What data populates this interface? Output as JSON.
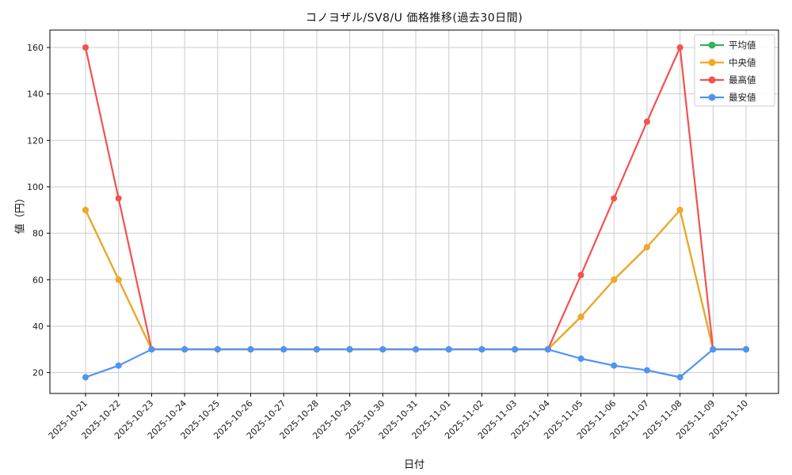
{
  "figure": {
    "background": "#ffffff",
    "plot_background": "#ffffff",
    "spine_color": "#000000",
    "tick_label_color": "#1a1a1a"
  },
  "chart_data": {
    "type": "line",
    "title": "コノヨザル/SV8/U 価格推移(過去30日間)",
    "xlabel": "日付",
    "ylabel": "値（円）",
    "grid": true,
    "grid_color": "#cccccc",
    "legend_position": "upper right",
    "legend_border_color": "#cccccc",
    "categories": [
      "2025-10-21",
      "2025-10-22",
      "2025-10-23",
      "2025-10-24",
      "2025-10-25",
      "2025-10-26",
      "2025-10-27",
      "2025-10-28",
      "2025-10-29",
      "2025-10-30",
      "2025-10-31",
      "2025-11-01",
      "2025-11-02",
      "2025-11-03",
      "2025-11-04",
      "2025-11-05",
      "2025-11-06",
      "2025-11-07",
      "2025-11-08",
      "2025-11-09",
      "2025-11-10"
    ],
    "series": [
      {
        "name": "平均値",
        "color": "#33b35c",
        "values": [
          90,
          60,
          30,
          30,
          30,
          30,
          30,
          30,
          30,
          30,
          30,
          30,
          30,
          30,
          30,
          44,
          60,
          74,
          90,
          30,
          30
        ],
        "occluded_by": "中央値"
      },
      {
        "name": "中央値",
        "color": "#f5a623",
        "values": [
          90,
          60,
          30,
          30,
          30,
          30,
          30,
          30,
          30,
          30,
          30,
          30,
          30,
          30,
          30,
          44,
          60,
          74,
          90,
          30,
          30
        ]
      },
      {
        "name": "最高値",
        "color": "#f4514f",
        "values": [
          160,
          95,
          30,
          30,
          30,
          30,
          30,
          30,
          30,
          30,
          30,
          30,
          30,
          30,
          30,
          62,
          95,
          128,
          160,
          30,
          30
        ]
      },
      {
        "name": "最安値",
        "color": "#4d95f2",
        "values": [
          18,
          23,
          30,
          30,
          30,
          30,
          30,
          30,
          30,
          30,
          30,
          30,
          30,
          30,
          30,
          26,
          23,
          21,
          18,
          30,
          30
        ]
      }
    ],
    "yticks": [
      20,
      40,
      60,
      80,
      100,
      120,
      140,
      160
    ],
    "ylim": [
      11,
      167.5
    ]
  }
}
